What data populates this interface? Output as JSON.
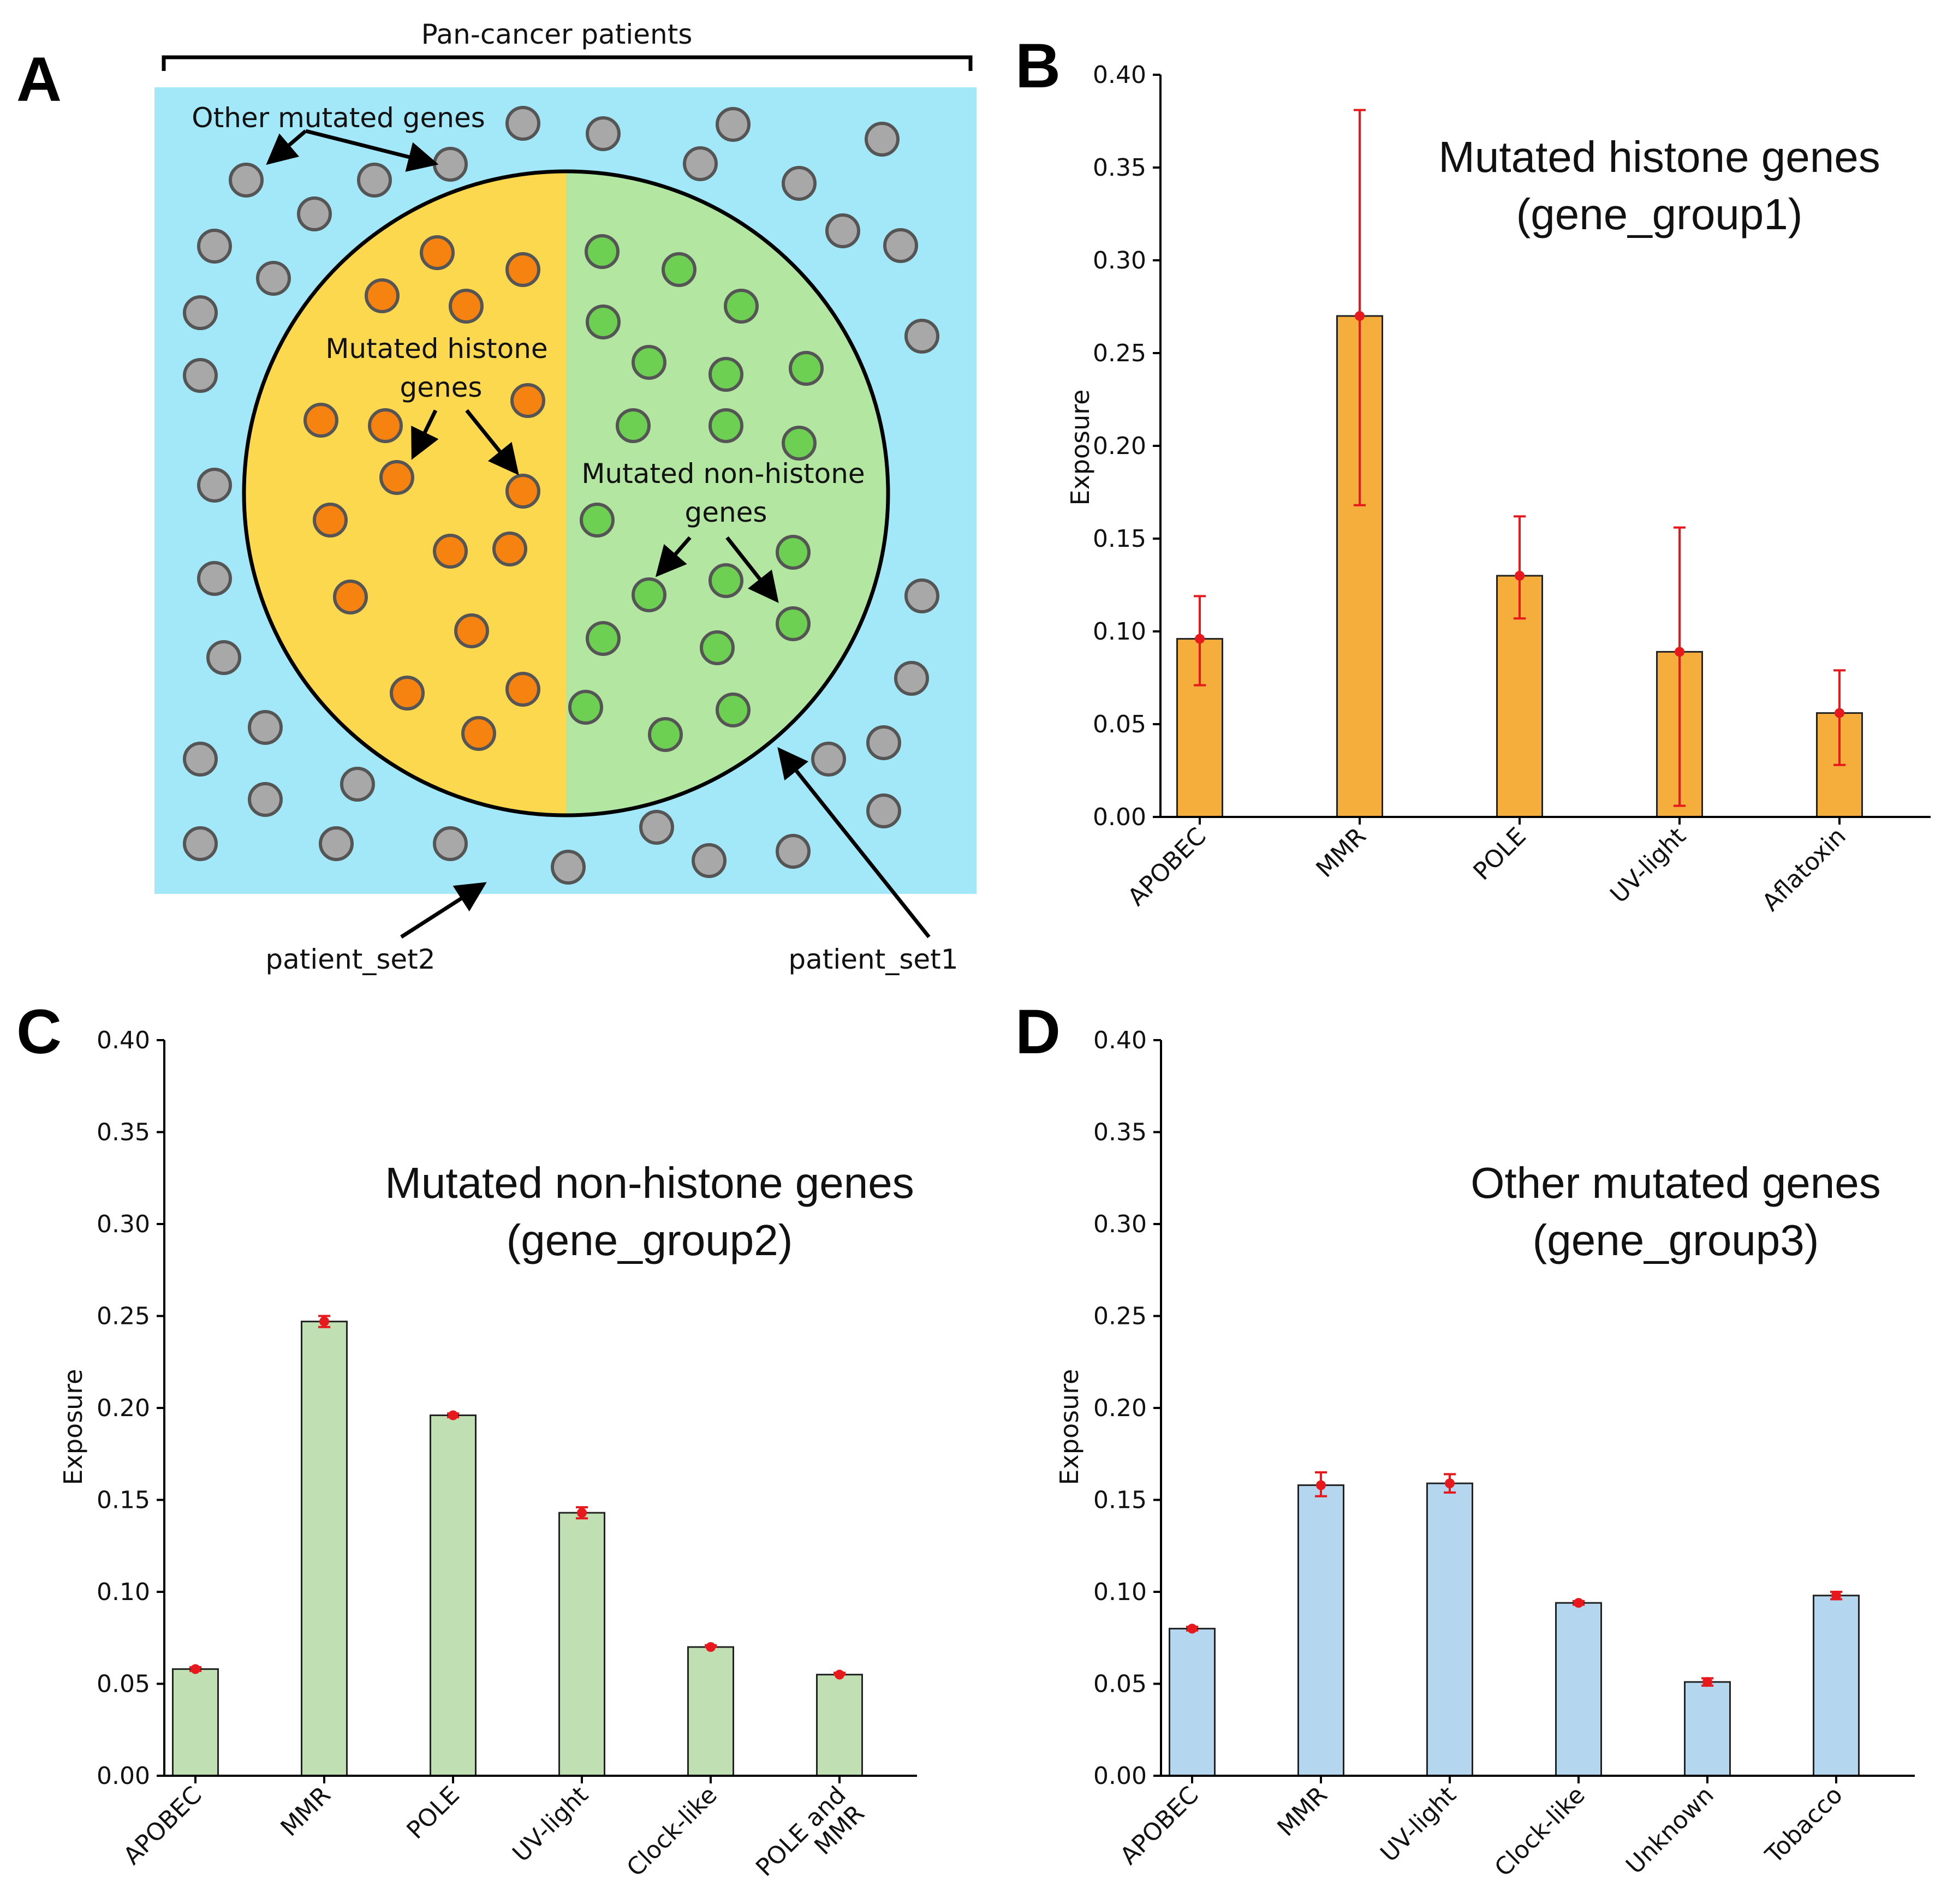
{
  "panel_letters": {
    "a": "A",
    "b": "B",
    "c": "C",
    "d": "D"
  },
  "diagram": {
    "bracket_label": "Pan-cancer patients",
    "other_label": "Other mutated genes",
    "histone_label_line1": "Mutated histone",
    "histone_label_line2": "genes",
    "nonhistone_label_line1": "Mutated non-histone",
    "nonhistone_label_line2": "genes",
    "patient_set1": "patient_set1",
    "patient_set2": "patient_set2",
    "colors": {
      "background": "#a3e8f8",
      "histone_half": "#fcd84f",
      "nonhistone_half": "#b3e6a0",
      "histone_dot": "#f6820f",
      "nonhistone_dot": "#6ed052",
      "other_dot": "#a8a8a8"
    }
  },
  "chart_data": [
    {
      "panel": "B",
      "type": "bar",
      "title_line1": "Mutated histone genes",
      "title_line2": "(gene_group1)",
      "xlabel": "",
      "ylabel": "Exposure",
      "ylim": [
        0,
        0.4
      ],
      "yticks": [
        "0.00",
        "0.05",
        "0.10",
        "0.15",
        "0.20",
        "0.25",
        "0.30",
        "0.35",
        "0.40"
      ],
      "categories": [
        "APOBEC",
        "MMR",
        "POLE",
        "UV-light",
        "Aflatoxin"
      ],
      "values": [
        0.096,
        0.27,
        0.13,
        0.089,
        0.056
      ],
      "err_low": [
        0.071,
        0.168,
        0.107,
        0.006,
        0.028
      ],
      "err_high": [
        0.119,
        0.381,
        0.162,
        0.156,
        0.079
      ],
      "bar_color": "#f5ae3b",
      "error_color": "#e8191c"
    },
    {
      "panel": "C",
      "type": "bar",
      "title_line1": "Mutated non-histone genes",
      "title_line2": "(gene_group2)",
      "xlabel": "",
      "ylabel": "Exposure",
      "ylim": [
        0,
        0.4
      ],
      "yticks": [
        "0.00",
        "0.05",
        "0.10",
        "0.15",
        "0.20",
        "0.25",
        "0.30",
        "0.35",
        "0.40"
      ],
      "categories": [
        "APOBEC",
        "MMR",
        "POLE",
        "UV-light",
        "Clock-like",
        "POLE and MMR"
      ],
      "category_lines": [
        [
          "APOBEC"
        ],
        [
          "MMR"
        ],
        [
          "POLE"
        ],
        [
          "UV-light"
        ],
        [
          "Clock-like"
        ],
        [
          "POLE and",
          "MMR"
        ]
      ],
      "values": [
        0.058,
        0.247,
        0.196,
        0.143,
        0.07,
        0.055
      ],
      "err_low": [
        0.057,
        0.244,
        0.195,
        0.14,
        0.07,
        0.055
      ],
      "err_high": [
        0.059,
        0.25,
        0.197,
        0.146,
        0.071,
        0.056
      ],
      "bar_color": "#c0e0b4",
      "error_color": "#e8191c"
    },
    {
      "panel": "D",
      "type": "bar",
      "title_line1": "Other mutated genes",
      "title_line2": "(gene_group3)",
      "xlabel": "",
      "ylabel": "Exposure",
      "ylim": [
        0,
        0.4
      ],
      "yticks": [
        "0.00",
        "0.05",
        "0.10",
        "0.15",
        "0.20",
        "0.25",
        "0.30",
        "0.35",
        "0.40"
      ],
      "categories": [
        "APOBEC",
        "MMR",
        "UV-light",
        "Clock-like",
        "Unknown",
        "Tobacco"
      ],
      "values": [
        0.08,
        0.158,
        0.159,
        0.094,
        0.051,
        0.098
      ],
      "err_low": [
        0.079,
        0.152,
        0.154,
        0.093,
        0.049,
        0.096
      ],
      "err_high": [
        0.081,
        0.165,
        0.164,
        0.095,
        0.053,
        0.1
      ],
      "bar_color": "#b4d6ee",
      "error_color": "#e8191c"
    }
  ]
}
